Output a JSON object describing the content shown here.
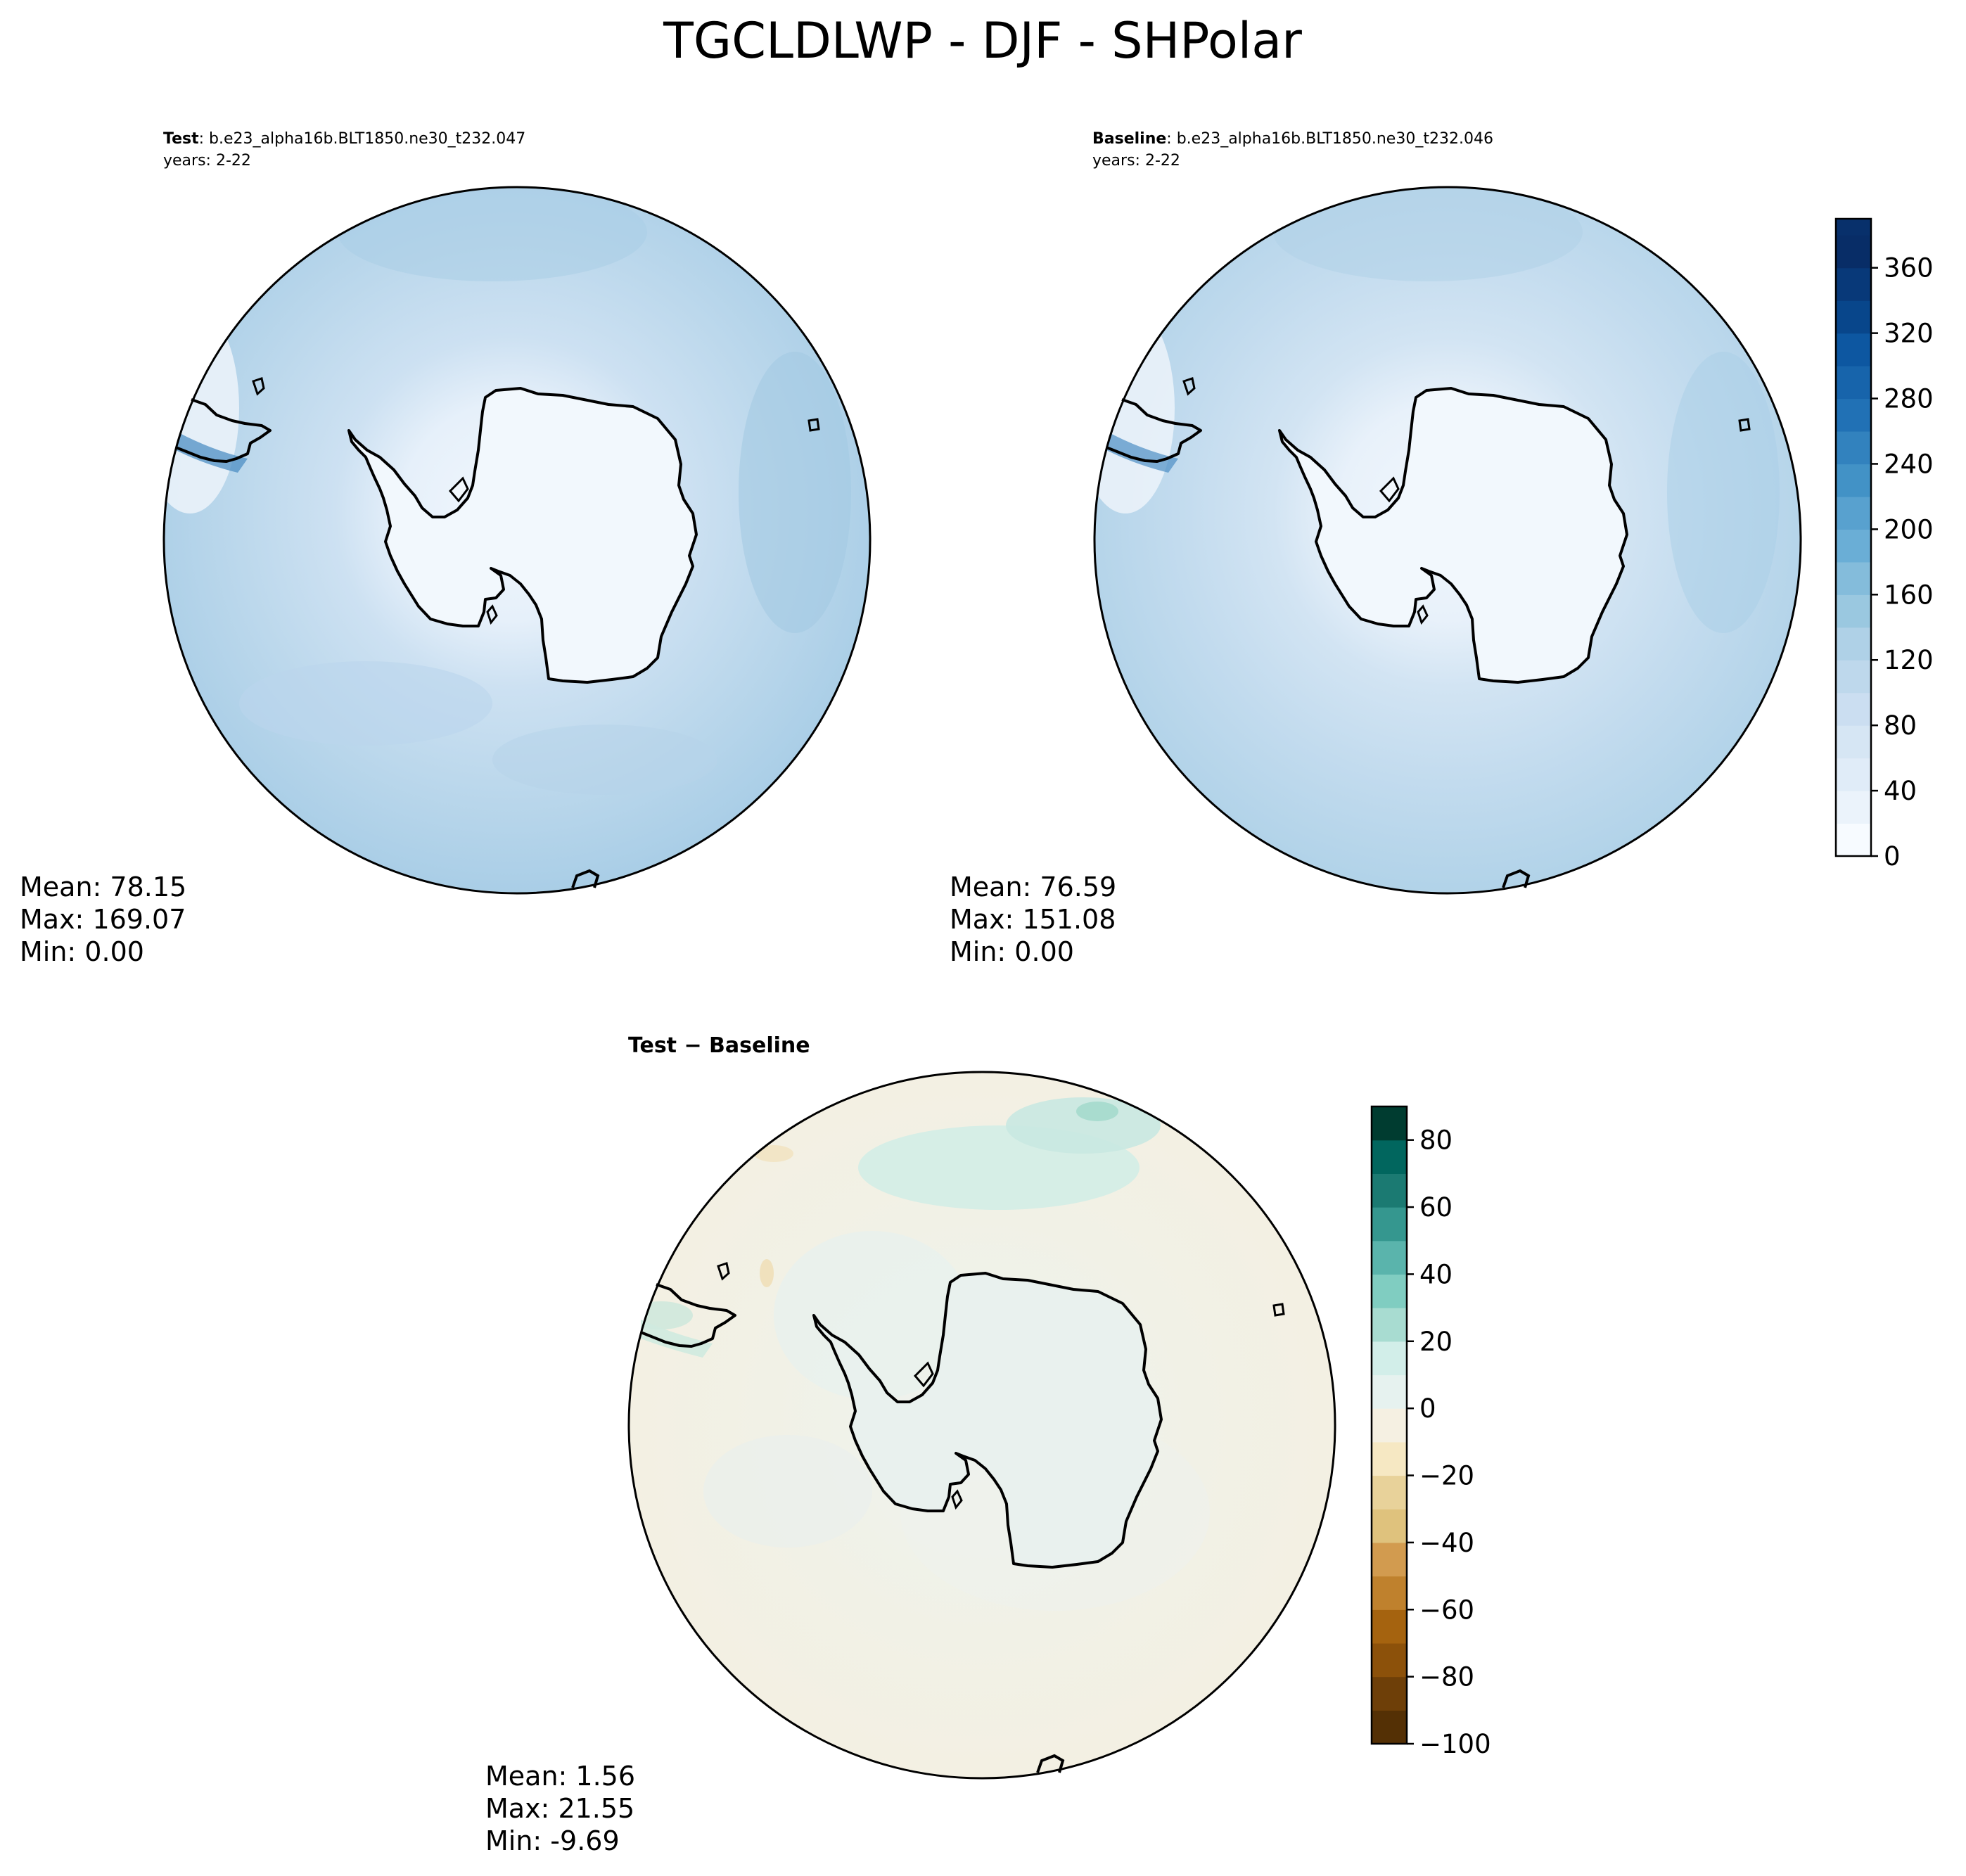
{
  "title": "TGCLDLWP - DJF - SHPolar",
  "panels": [
    {
      "label": "Test",
      "case": ": b.e23_alpha16b.BLT1850.ne30_t232.047",
      "years": "years: 2-22",
      "stats": {
        "mean": "Mean: 78.15",
        "max": "Max: 169.07",
        "min": "Min:  0.00"
      }
    },
    {
      "label": "Baseline",
      "case": ": b.e23_alpha16b.BLT1850.ne30_t232.046",
      "years": "years: 2-22",
      "stats": {
        "mean": "Mean: 76.59",
        "max": "Max: 151.08",
        "min": "Min:  0.00"
      }
    },
    {
      "label": "Test − Baseline",
      "stats": {
        "mean": "Mean:  1.56",
        "max": "Max: 21.55",
        "min": "Min: -9.69"
      }
    }
  ],
  "chart_data": [
    {
      "type": "heatmap",
      "projection": "south-polar-stereographic",
      "name": "Test",
      "mean": 78.15,
      "max": 169.07,
      "min": 0.0,
      "colormap": "Blues",
      "shared_colorbar": "right"
    },
    {
      "type": "heatmap",
      "projection": "south-polar-stereographic",
      "name": "Baseline",
      "mean": 76.59,
      "max": 151.08,
      "min": 0.0,
      "colormap": "Blues",
      "colorbar": {
        "min": 0,
        "max": 390,
        "step": 20,
        "ticks": [
          0,
          40,
          80,
          120,
          160,
          200,
          240,
          280,
          320,
          360
        ],
        "tick_labels": [
          "0",
          "40",
          "80",
          "120",
          "160",
          "200",
          "240",
          "280",
          "320",
          "360"
        ],
        "colors": [
          "#f7fbff",
          "#ebf3fb",
          "#e0ecf8",
          "#d6e6f4",
          "#cbdef1",
          "#bed8ec",
          "#afd1e7",
          "#9ac8e0",
          "#84bcdb",
          "#6aaed6",
          "#58a1cf",
          "#4292c6",
          "#3282be",
          "#2171b5",
          "#1764ab",
          "#0d57a1",
          "#08468b",
          "#083979",
          "#082d67",
          "#08306b"
        ]
      }
    },
    {
      "type": "heatmap",
      "projection": "south-polar-stereographic",
      "name": "Test − Baseline",
      "mean": 1.56,
      "max": 21.55,
      "min": -9.69,
      "colormap": "BrBG",
      "colorbar": {
        "min": -100,
        "max": 90,
        "step": 10,
        "ticks": [
          -100,
          -80,
          -60,
          -40,
          -20,
          0,
          20,
          40,
          60,
          80
        ],
        "tick_labels": [
          "−100",
          "−80",
          "−60",
          "−40",
          "−20",
          "0",
          "20",
          "40",
          "60",
          "80"
        ],
        "colors": [
          "#543005",
          "#6e3f08",
          "#8c510a",
          "#a5630f",
          "#bf812d",
          "#d29b4f",
          "#dfc27d",
          "#e8d29a",
          "#f6e8c3",
          "#f5f0e2",
          "#e6f2ef",
          "#d2eee9",
          "#a8dcd1",
          "#80cdc1",
          "#5ab4ac",
          "#35978f",
          "#1b7a72",
          "#01665e",
          "#003c30"
        ]
      }
    }
  ]
}
